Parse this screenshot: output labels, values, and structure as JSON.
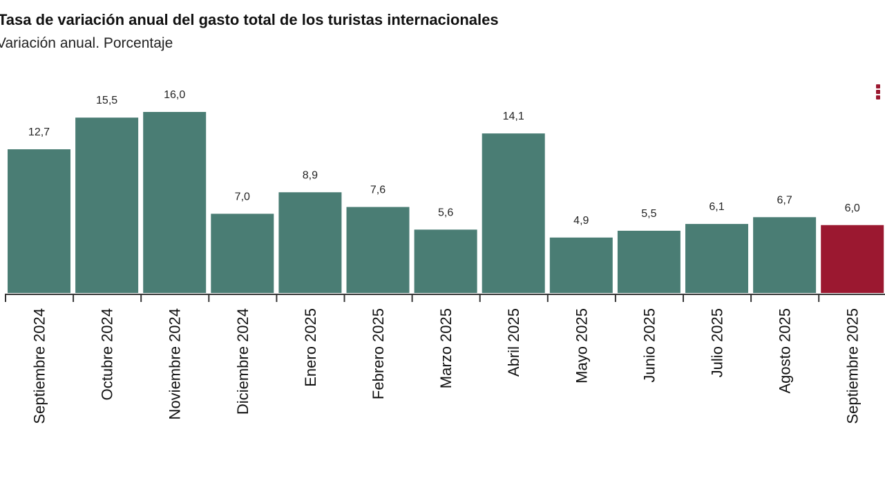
{
  "chart_data": {
    "type": "bar",
    "title": "Tasa de variación anual del gasto total de los turistas internacionales",
    "subtitle": "Variación anual. Porcentaje",
    "categories": [
      "Septiembre 2024",
      "Octubre 2024",
      "Noviembre 2024",
      "Diciembre 2024",
      "Enero 2025",
      "Febrero 2025",
      "Marzo 2025",
      "Abril 2025",
      "Mayo 2025",
      "Junio 2025",
      "Julio 2025",
      "Agosto 2025",
      "Septiembre 2025"
    ],
    "values": [
      12.7,
      15.5,
      16.0,
      7.0,
      8.9,
      7.6,
      5.6,
      14.1,
      4.9,
      5.5,
      6.1,
      6.7,
      6.0
    ],
    "data_labels": [
      "12,7",
      "15,5",
      "16,0",
      "7,0",
      "8,9",
      "7,6",
      "5,6",
      "14,1",
      "4,9",
      "5,5",
      "6,1",
      "6,7",
      "6,0"
    ],
    "xlabel": "",
    "ylabel": "",
    "ylim": [
      0,
      16.0
    ],
    "grid": false,
    "colors": {
      "default": "#4a7d74",
      "highlight": "#9b1830"
    },
    "highlight_index": 12
  },
  "menu_icon": "vertical-ellipsis-icon"
}
